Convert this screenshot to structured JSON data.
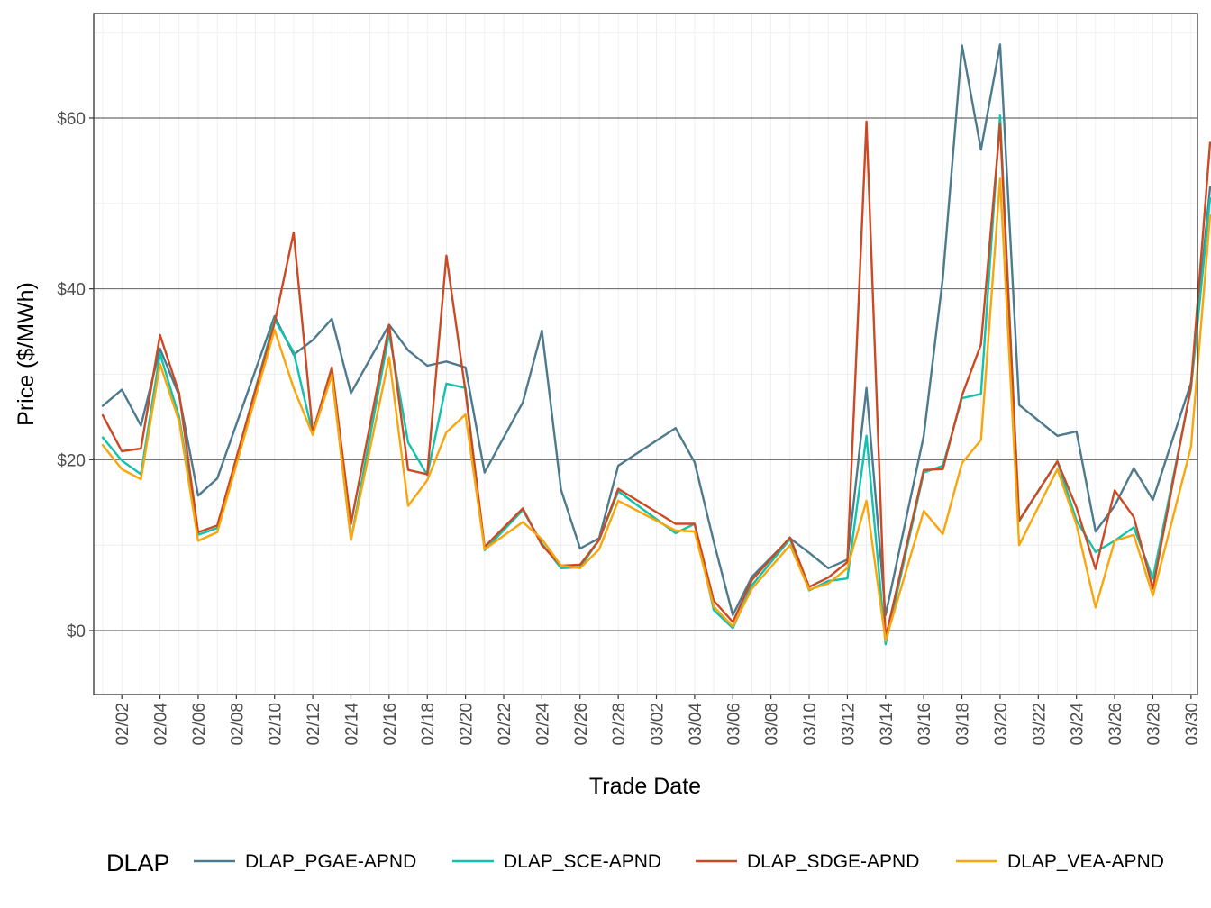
{
  "chart_data": {
    "type": "line",
    "xlabel": "Trade Date",
    "ylabel": "Price ($/MWh)",
    "ylim": [
      -7,
      72
    ],
    "y_ticks": [
      0,
      20,
      40,
      60
    ],
    "y_tick_labels": [
      "$0",
      "$20",
      "$40",
      "$60"
    ],
    "x_tick_labels": [
      "02/02",
      "02/04",
      "02/06",
      "02/08",
      "02/10",
      "02/12",
      "02/14",
      "02/16",
      "02/18",
      "02/20",
      "02/22",
      "02/24",
      "02/26",
      "02/28",
      "03/02",
      "03/04",
      "03/06",
      "03/08",
      "03/10",
      "03/12",
      "03/14",
      "03/16",
      "03/18",
      "03/20",
      "03/22",
      "03/24",
      "03/26",
      "03/28",
      "03/30"
    ],
    "x": [
      "02/01",
      "02/02",
      "02/03",
      "02/04",
      "02/05",
      "02/06",
      "02/07",
      "02/10",
      "02/11",
      "02/12",
      "02/13",
      "02/14",
      "02/16",
      "02/17",
      "02/18",
      "02/19",
      "02/20",
      "02/21",
      "02/23",
      "02/24",
      "02/25",
      "02/26",
      "02/27",
      "02/28",
      "03/03",
      "03/04",
      "03/05",
      "03/06",
      "03/07",
      "03/09",
      "03/10",
      "03/11",
      "03/12",
      "03/13",
      "03/14",
      "03/16",
      "03/17",
      "03/18",
      "03/19",
      "03/20",
      "03/21",
      "03/23",
      "03/24",
      "03/25",
      "03/26",
      "03/27",
      "03/28",
      "03/30",
      "03/31"
    ],
    "grid": true,
    "legend": {
      "title": "DLAP",
      "position": "bottom"
    },
    "series": [
      {
        "name": "DLAP_PGAE-APND",
        "color": "#4E7A8D",
        "values": [
          26.3,
          28.2,
          24.0,
          33.0,
          27.5,
          15.8,
          17.8,
          36.8,
          32.3,
          34.0,
          36.5,
          27.8,
          35.8,
          32.8,
          31.0,
          31.5,
          30.8,
          18.5,
          26.7,
          35.1,
          16.5,
          9.6,
          10.8,
          19.3,
          23.7,
          19.7,
          10.4,
          1.8,
          6.3,
          10.8,
          9.1,
          7.3,
          8.3,
          28.4,
          1.8,
          22.8,
          41.3,
          68.5,
          56.3,
          68.6,
          26.4,
          22.8,
          23.3,
          11.6,
          14.6,
          19.0,
          15.3,
          29.0,
          51.9
        ]
      },
      {
        "name": "DLAP_SCE-APND",
        "color": "#11C2AD",
        "values": [
          22.6,
          19.9,
          18.3,
          32.4,
          25.0,
          11.2,
          12.0,
          36.4,
          32.6,
          23.0,
          30.0,
          10.6,
          34.8,
          22.0,
          18.2,
          28.9,
          28.4,
          9.4,
          14.1,
          10.2,
          7.3,
          7.4,
          10.6,
          16.3,
          11.4,
          12.5,
          2.4,
          0.3,
          5.3,
          10.7,
          4.7,
          5.8,
          6.1,
          22.8,
          -1.6,
          18.5,
          19.3,
          27.2,
          27.7,
          60.3,
          12.8,
          19.8,
          12.9,
          9.2,
          10.5,
          12.1,
          6.1,
          28.3,
          50.6
        ]
      },
      {
        "name": "DLAP_SDGE-APND",
        "color": "#CB4A24",
        "values": [
          25.2,
          21.0,
          21.3,
          34.6,
          27.8,
          11.5,
          12.3,
          36.0,
          46.6,
          23.2,
          30.8,
          12.5,
          35.7,
          18.8,
          18.3,
          43.9,
          28.0,
          9.8,
          14.3,
          10.0,
          7.6,
          7.7,
          10.6,
          16.6,
          12.5,
          12.5,
          3.5,
          1.0,
          5.9,
          10.9,
          5.1,
          6.2,
          8.0,
          59.6,
          -0.9,
          18.8,
          18.9,
          27.5,
          33.5,
          59.3,
          12.9,
          19.8,
          14.4,
          7.2,
          16.4,
          13.3,
          4.9,
          28.6,
          57.1
        ]
      },
      {
        "name": "DLAP_VEA-APND",
        "color": "#F9A50C",
        "values": [
          21.7,
          18.9,
          17.7,
          31.2,
          24.5,
          10.5,
          11.5,
          35.2,
          28.4,
          22.9,
          29.9,
          10.6,
          32.0,
          14.6,
          17.6,
          23.2,
          25.3,
          9.5,
          12.7,
          10.7,
          7.6,
          7.3,
          9.5,
          15.2,
          11.7,
          11.6,
          2.8,
          0.5,
          4.9,
          10.0,
          4.8,
          5.5,
          7.3,
          15.2,
          -1.2,
          14.0,
          11.3,
          19.6,
          22.3,
          52.9,
          10.0,
          18.9,
          12.4,
          2.7,
          10.5,
          11.2,
          4.1,
          21.5,
          48.6
        ]
      }
    ]
  }
}
